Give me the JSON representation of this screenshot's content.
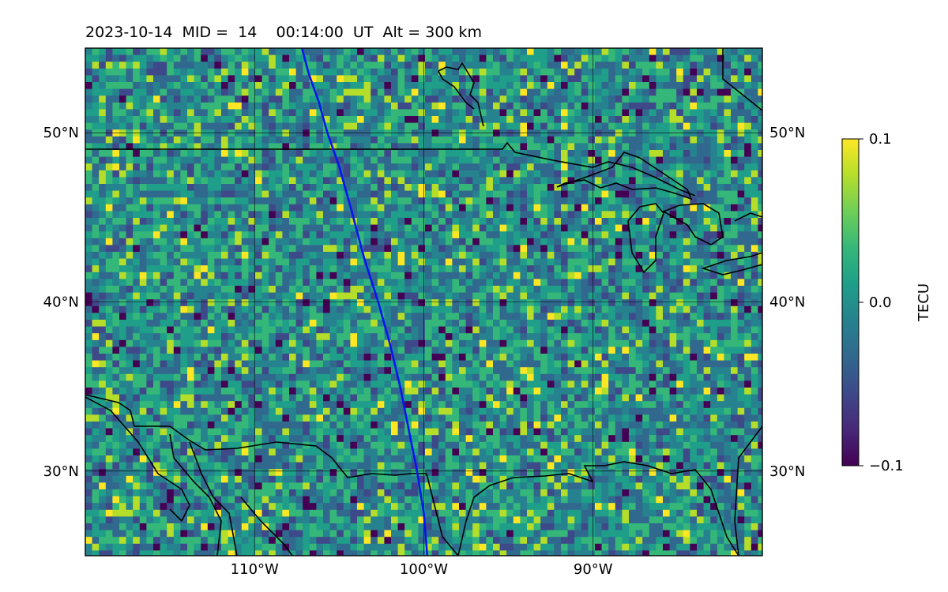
{
  "title": "2023-10-14  MID =  14    00:14:00  UT  Alt = 300 km",
  "map": {
    "lon_range": [
      -120,
      -80
    ],
    "lat_range": [
      25,
      55
    ],
    "lon_ticks": [
      {
        "value": -110,
        "label": "110°W"
      },
      {
        "value": -100,
        "label": "100°W"
      },
      {
        "value": -90,
        "label": "90°W"
      }
    ],
    "lat_ticks": [
      {
        "value": 50,
        "label": "50°N"
      },
      {
        "value": 40,
        "label": "40°N"
      },
      {
        "value": 30,
        "label": "30°N"
      }
    ],
    "field": "TEC perturbation",
    "track_color": "#0a14f0",
    "track": [
      [
        -107.2,
        55
      ],
      [
        -106.8,
        53.5
      ],
      [
        -106.2,
        51.8
      ],
      [
        -105.7,
        50.0
      ],
      [
        -105.0,
        48.0
      ],
      [
        -104.3,
        45.5
      ],
      [
        -103.5,
        42.5
      ],
      [
        -102.7,
        40.0
      ],
      [
        -102.0,
        37.5
      ],
      [
        -101.4,
        35.0
      ],
      [
        -100.9,
        32.5
      ],
      [
        -100.4,
        30.0
      ],
      [
        -100.0,
        27.5
      ],
      [
        -99.8,
        25
      ]
    ]
  },
  "colorbar": {
    "label": "TECU",
    "min": -0.1,
    "max": 0.1,
    "ticks": [
      {
        "value": 0.1,
        "label": "0.1"
      },
      {
        "value": 0.0,
        "label": "0.0"
      },
      {
        "value": -0.1,
        "label": "−0.1"
      }
    ],
    "colors": [
      "#440154",
      "#482878",
      "#3e4989",
      "#31688e",
      "#26828e",
      "#1f9e89",
      "#35b779",
      "#6ece58",
      "#b5de2b",
      "#fde725"
    ]
  }
}
